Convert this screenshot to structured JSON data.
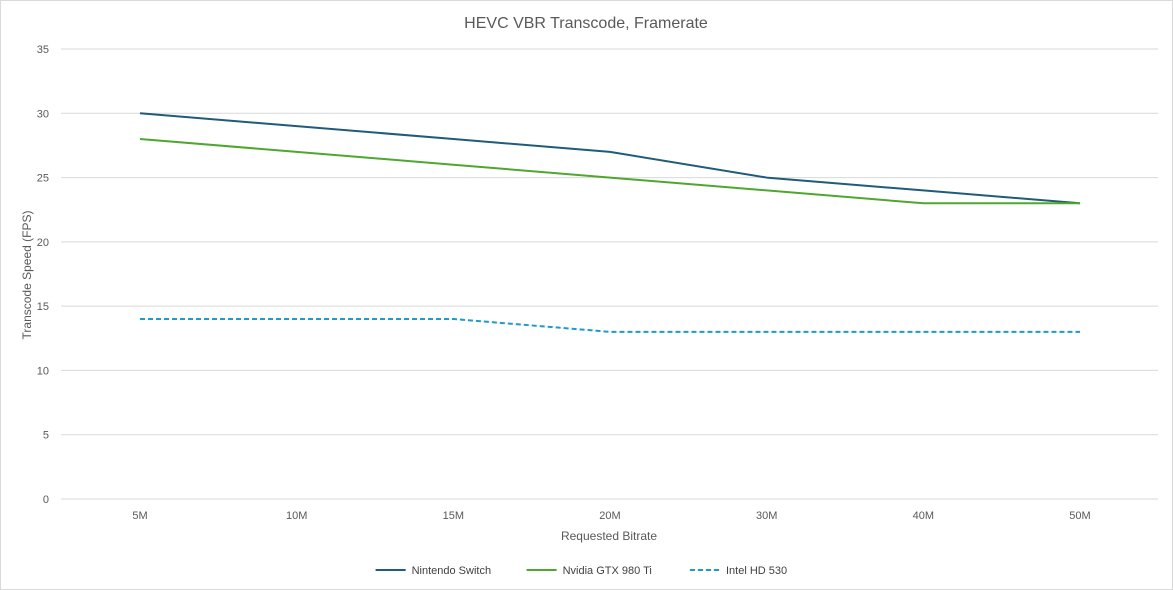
{
  "chart_data": {
    "type": "line",
    "title": "HEVC VBR Transcode, Framerate",
    "xlabel": "Requested Bitrate",
    "ylabel": "Transcode Speed (FPS)",
    "categories": [
      "5M",
      "10M",
      "15M",
      "20M",
      "30M",
      "40M",
      "50M"
    ],
    "ylim": [
      0,
      35
    ],
    "yticks": [
      0,
      5,
      10,
      15,
      20,
      25,
      30,
      35
    ],
    "grid": true,
    "legend_position": "bottom",
    "series": [
      {
        "name": "Nintendo Switch",
        "color": "#1f5b7a",
        "dash": "solid",
        "values": [
          30,
          29,
          28,
          27,
          25,
          24,
          23
        ]
      },
      {
        "name": "Nvidia GTX 980 Ti",
        "color": "#4ea72e",
        "dash": "solid",
        "values": [
          28,
          27,
          26,
          25,
          24,
          23,
          23
        ]
      },
      {
        "name": "Intel HD 530",
        "color": "#1a9bd3",
        "dash": "dashed",
        "values": [
          14,
          14,
          14,
          13,
          13,
          13,
          13
        ]
      }
    ]
  }
}
